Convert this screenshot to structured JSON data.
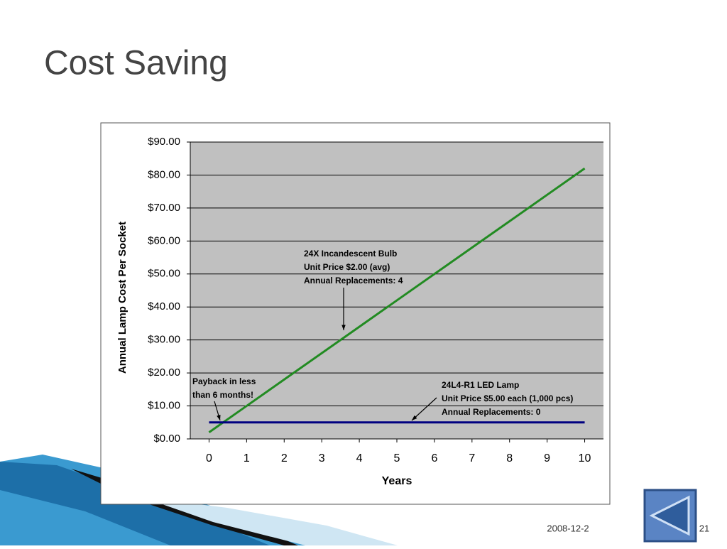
{
  "slide": {
    "title": "Cost Saving",
    "date": "2008-12-2",
    "page": "21"
  },
  "chart_data": {
    "type": "line",
    "x": [
      0,
      1,
      2,
      3,
      4,
      5,
      6,
      7,
      8,
      9,
      10
    ],
    "series": [
      {
        "color": "#228b22",
        "values": [
          2,
          10,
          18,
          26,
          34,
          42,
          50,
          58,
          66,
          74,
          82
        ]
      },
      {
        "color": "#000080",
        "values": [
          5,
          5,
          5,
          5,
          5,
          5,
          5,
          5,
          5,
          5,
          5
        ]
      }
    ],
    "xlim": [
      -0.5,
      10.5
    ],
    "xticks": [
      0,
      1,
      2,
      3,
      4,
      5,
      6,
      7,
      8,
      9,
      10
    ],
    "ylim": [
      0,
      90
    ],
    "yticks": [
      {
        "value": 0,
        "label": "$0.00"
      },
      {
        "value": 10,
        "label": "$10.00"
      },
      {
        "value": 20,
        "label": "$20.00"
      },
      {
        "value": 30,
        "label": "$30.00"
      },
      {
        "value": 40,
        "label": "$40.00"
      },
      {
        "value": 50,
        "label": "$50.00"
      },
      {
        "value": 60,
        "label": "$60.00"
      },
      {
        "value": 70,
        "label": "$70.00"
      },
      {
        "value": 80,
        "label": "$80.00"
      },
      {
        "value": 90,
        "label": "$90.00"
      }
    ],
    "xlabel": "Years",
    "ylabel": "Annual Lamp Cost Per Socket",
    "grid": true,
    "annotations": [
      {
        "lines": [
          "24X Incandescent Bulb",
          "Unit Price $2.00 (avg)",
          "Annual Replacements: 4"
        ]
      },
      {
        "lines": [
          "24L4-R1 LED Lamp",
          "Unit Price $5.00 each (1,000 pcs)",
          "Annual Replacements: 0"
        ]
      },
      {
        "lines": [
          "Payback in less",
          "than 6 months!"
        ]
      }
    ]
  }
}
